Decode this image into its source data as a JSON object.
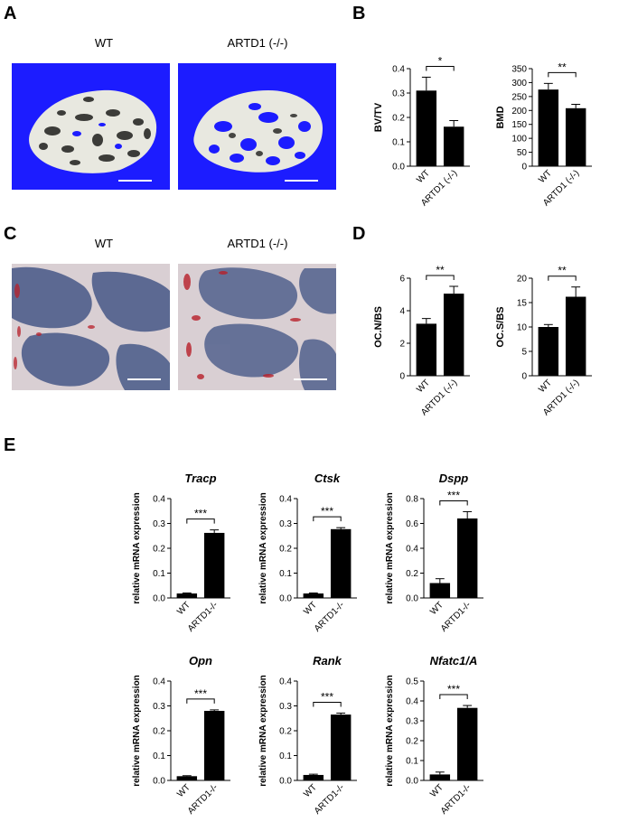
{
  "panels": {
    "A": "A",
    "B": "B",
    "C": "C",
    "D": "D",
    "E": "E"
  },
  "captions": {
    "a_wt": "WT",
    "a_ko": "ARTD1 (-/-)",
    "c_wt": "WT",
    "c_ko": "ARTD1 (-/-)"
  },
  "colors": {
    "microct_background": "#1c1cff",
    "bar_fill": "#000000",
    "histology_background": "#d9cfd3",
    "histology_marrow": "#4f5f8c",
    "trap_stain": "#b8202a"
  },
  "chart_data": [
    {
      "id": "B1",
      "type": "bar",
      "title": "",
      "xlabel": "",
      "ylabel": "BV/TV",
      "categories": [
        "WT",
        "ARTD1 (-/-)"
      ],
      "values": [
        0.31,
        0.162
      ],
      "errors": [
        0.055,
        0.025
      ],
      "ylim": [
        0,
        0.4
      ],
      "yticks": [
        "0.0",
        "0.1",
        "0.2",
        "0.3",
        "0.4"
      ],
      "significance": "*"
    },
    {
      "id": "B2",
      "type": "bar",
      "title": "",
      "xlabel": "",
      "ylabel": "BMD",
      "categories": [
        "WT",
        "ARTD1 (-/-)"
      ],
      "values": [
        275,
        208
      ],
      "errors": [
        22,
        14
      ],
      "ylim": [
        0,
        350
      ],
      "yticks": [
        "0",
        "50",
        "100",
        "150",
        "200",
        "250",
        "300",
        "350"
      ],
      "significance": "**"
    },
    {
      "id": "D1",
      "type": "bar",
      "title": "",
      "xlabel": "",
      "ylabel": "OC.N/BS",
      "categories": [
        "WT",
        "ARTD1 (-/-)"
      ],
      "values": [
        3.2,
        5.05
      ],
      "errors": [
        0.32,
        0.45
      ],
      "ylim": [
        0,
        6
      ],
      "yticks": [
        "0",
        "2",
        "4",
        "6"
      ],
      "significance": "**"
    },
    {
      "id": "D2",
      "type": "bar",
      "title": "",
      "xlabel": "",
      "ylabel": "OC.S/BS",
      "categories": [
        "WT",
        "ARTD1 (-/-)"
      ],
      "values": [
        10.0,
        16.2
      ],
      "errors": [
        0.5,
        2.0
      ],
      "ylim": [
        0,
        20
      ],
      "yticks": [
        "0",
        "5",
        "10",
        "15",
        "20"
      ],
      "significance": "**"
    },
    {
      "id": "E1",
      "type": "bar",
      "title": "Tracp",
      "xlabel": "",
      "ylabel": "relative mRNA expression",
      "categories": [
        "WT",
        "ARTD1-/-"
      ],
      "values": [
        0.018,
        0.262
      ],
      "errors": [
        0.002,
        0.012
      ],
      "ylim": [
        0,
        0.4
      ],
      "yticks": [
        "0.0",
        "0.1",
        "0.2",
        "0.3",
        "0.4"
      ],
      "significance": "***"
    },
    {
      "id": "E2",
      "type": "bar",
      "title": "Ctsk",
      "xlabel": "",
      "ylabel": "relative mRNA expression",
      "categories": [
        "WT",
        "ARTD1-/-"
      ],
      "values": [
        0.018,
        0.277
      ],
      "errors": [
        0.002,
        0.006
      ],
      "ylim": [
        0,
        0.4
      ],
      "yticks": [
        "0.0",
        "0.1",
        "0.2",
        "0.3",
        "0.4"
      ],
      "significance": "***"
    },
    {
      "id": "E3",
      "type": "bar",
      "title": "Dspp",
      "xlabel": "",
      "ylabel": "relative mRNA expression",
      "categories": [
        "WT",
        "ARTD1-/-"
      ],
      "values": [
        0.12,
        0.64
      ],
      "errors": [
        0.035,
        0.055
      ],
      "ylim": [
        0,
        0.8
      ],
      "yticks": [
        "0.0",
        "0.2",
        "0.4",
        "0.6",
        "0.8"
      ],
      "significance": "***"
    },
    {
      "id": "E4",
      "type": "bar",
      "title": "Opn",
      "xlabel": "",
      "ylabel": "relative mRNA expression",
      "categories": [
        "WT",
        "ARTD1-/-"
      ],
      "values": [
        0.017,
        0.28
      ],
      "errors": [
        0.002,
        0.004
      ],
      "ylim": [
        0,
        0.4
      ],
      "yticks": [
        "0.0",
        "0.1",
        "0.2",
        "0.3",
        "0.4"
      ],
      "significance": "***"
    },
    {
      "id": "E5",
      "type": "bar",
      "title": "Rank",
      "xlabel": "",
      "ylabel": "relative mRNA expression",
      "categories": [
        "WT",
        "ARTD1-/-"
      ],
      "values": [
        0.022,
        0.265
      ],
      "errors": [
        0.003,
        0.006
      ],
      "ylim": [
        0,
        0.4
      ],
      "yticks": [
        "0.0",
        "0.1",
        "0.2",
        "0.3",
        "0.4"
      ],
      "significance": "***"
    },
    {
      "id": "E6",
      "type": "bar",
      "title": "Nfatc1/A",
      "xlabel": "",
      "ylabel": "relative mRNA expression",
      "categories": [
        "WT",
        "ARTD1-/-"
      ],
      "values": [
        0.03,
        0.365
      ],
      "errors": [
        0.012,
        0.012
      ],
      "ylim": [
        0,
        0.5
      ],
      "yticks": [
        "0.0",
        "0.1",
        "0.2",
        "0.3",
        "0.4",
        "0.5"
      ],
      "significance": "***"
    }
  ]
}
